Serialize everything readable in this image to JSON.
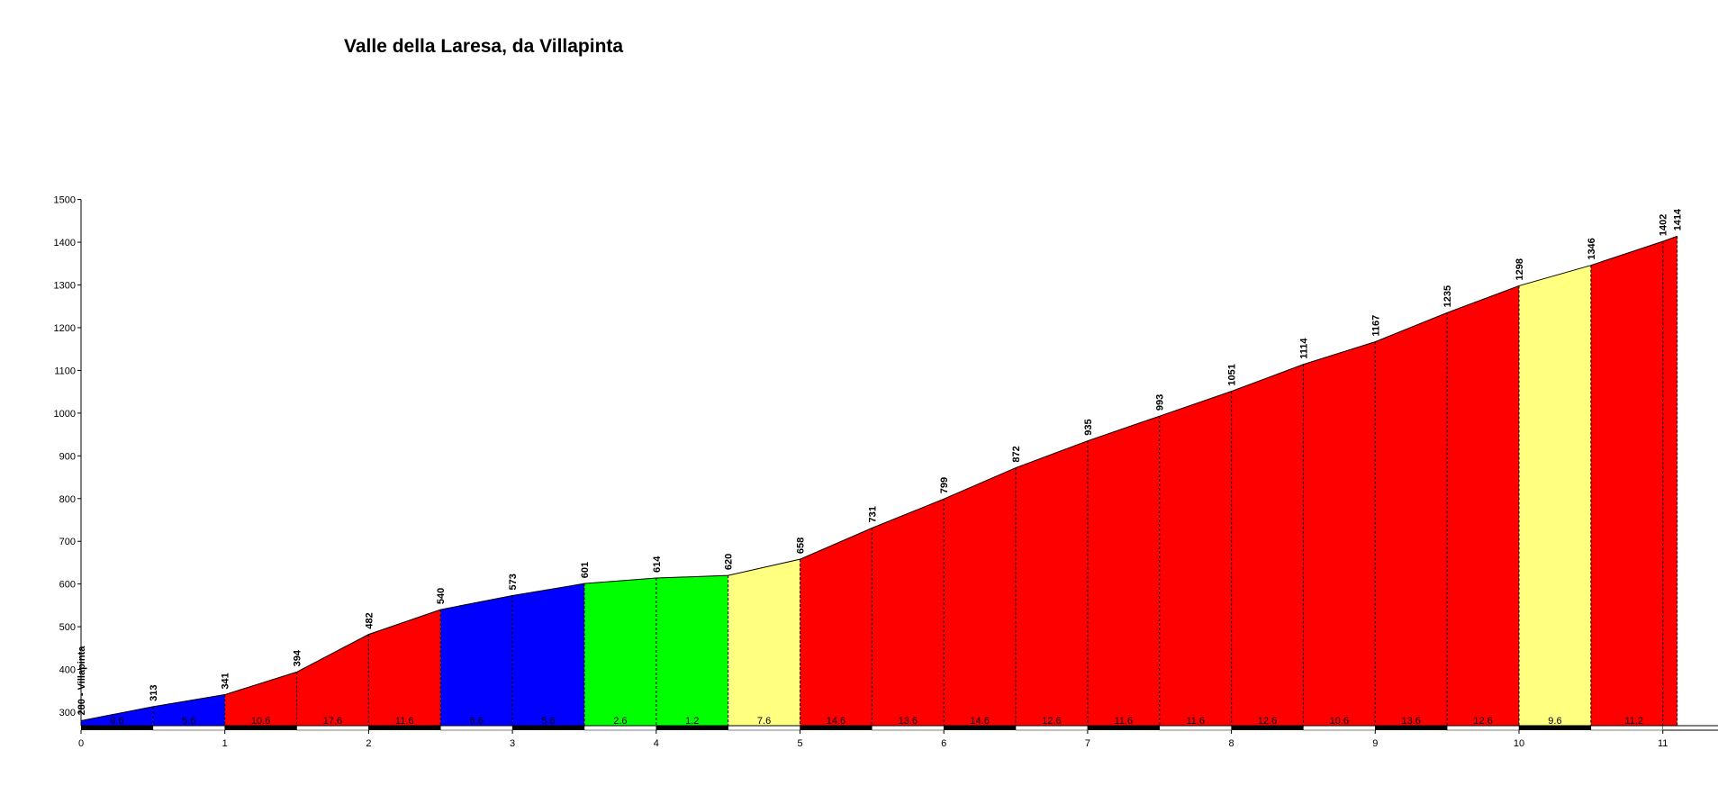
{
  "chart_data": {
    "type": "area",
    "title": "Valle della Laresa, da Villapinta",
    "xlabel": "",
    "ylabel": "",
    "xlim": [
      0,
      11.5
    ],
    "ylim": [
      260,
      1500
    ],
    "y_ticks": [
      300,
      400,
      500,
      600,
      700,
      800,
      900,
      1000,
      1100,
      1200,
      1300,
      1400,
      1500
    ],
    "x_ticks": [
      0,
      1,
      2,
      3,
      4,
      5,
      6,
      7,
      8,
      9,
      10,
      11
    ],
    "start_label": "280 - Villapinta",
    "points": [
      {
        "x": 0.0,
        "y": 280
      },
      {
        "x": 0.5,
        "y": 313
      },
      {
        "x": 1.0,
        "y": 341
      },
      {
        "x": 1.5,
        "y": 394
      },
      {
        "x": 2.0,
        "y": 482
      },
      {
        "x": 2.5,
        "y": 540
      },
      {
        "x": 3.0,
        "y": 573
      },
      {
        "x": 3.5,
        "y": 601
      },
      {
        "x": 4.0,
        "y": 614
      },
      {
        "x": 4.5,
        "y": 620
      },
      {
        "x": 5.0,
        "y": 658
      },
      {
        "x": 5.5,
        "y": 731
      },
      {
        "x": 6.0,
        "y": 799
      },
      {
        "x": 6.5,
        "y": 872
      },
      {
        "x": 7.0,
        "y": 935
      },
      {
        "x": 7.5,
        "y": 993
      },
      {
        "x": 8.0,
        "y": 1051
      },
      {
        "x": 8.5,
        "y": 1114
      },
      {
        "x": 9.0,
        "y": 1167
      },
      {
        "x": 9.5,
        "y": 1235
      },
      {
        "x": 10.0,
        "y": 1298
      },
      {
        "x": 10.5,
        "y": 1346
      },
      {
        "x": 11.0,
        "y": 1402
      },
      {
        "x": 11.1,
        "y": 1414
      }
    ],
    "segments": [
      {
        "from": 0.0,
        "to": 0.5,
        "grade": "6.6",
        "color": "#0000ff"
      },
      {
        "from": 0.5,
        "to": 1.0,
        "grade": "5.6",
        "color": "#0000ff"
      },
      {
        "from": 1.0,
        "to": 1.5,
        "grade": "10.6",
        "color": "#ff0000"
      },
      {
        "from": 1.5,
        "to": 2.0,
        "grade": "17.6",
        "color": "#ff0000"
      },
      {
        "from": 2.0,
        "to": 2.5,
        "grade": "11.6",
        "color": "#ff0000"
      },
      {
        "from": 2.5,
        "to": 3.0,
        "grade": "6.6",
        "color": "#0000ff"
      },
      {
        "from": 3.0,
        "to": 3.5,
        "grade": "5.6",
        "color": "#0000ff"
      },
      {
        "from": 3.5,
        "to": 4.0,
        "grade": "2.6",
        "color": "#00ff00"
      },
      {
        "from": 4.0,
        "to": 4.5,
        "grade": "1.2",
        "color": "#00ff00"
      },
      {
        "from": 4.5,
        "to": 5.0,
        "grade": "7.6",
        "color": "#ffff80"
      },
      {
        "from": 5.0,
        "to": 5.5,
        "grade": "14.6",
        "color": "#ff0000"
      },
      {
        "from": 5.5,
        "to": 6.0,
        "grade": "13.6",
        "color": "#ff0000"
      },
      {
        "from": 6.0,
        "to": 6.5,
        "grade": "14.6",
        "color": "#ff0000"
      },
      {
        "from": 6.5,
        "to": 7.0,
        "grade": "12.6",
        "color": "#ff0000"
      },
      {
        "from": 7.0,
        "to": 7.5,
        "grade": "11.6",
        "color": "#ff0000"
      },
      {
        "from": 7.5,
        "to": 8.0,
        "grade": "11.6",
        "color": "#ff0000"
      },
      {
        "from": 8.0,
        "to": 8.5,
        "grade": "12.6",
        "color": "#ff0000"
      },
      {
        "from": 8.5,
        "to": 9.0,
        "grade": "10.6",
        "color": "#ff0000"
      },
      {
        "from": 9.0,
        "to": 9.5,
        "grade": "13.6",
        "color": "#ff0000"
      },
      {
        "from": 9.5,
        "to": 10.0,
        "grade": "12.6",
        "color": "#ff0000"
      },
      {
        "from": 10.0,
        "to": 10.5,
        "grade": "9.6",
        "color": "#ffff80"
      },
      {
        "from": 10.5,
        "to": 11.1,
        "grade": "11.2",
        "color": "#ff0000"
      }
    ],
    "grid": false,
    "legend": "none"
  }
}
